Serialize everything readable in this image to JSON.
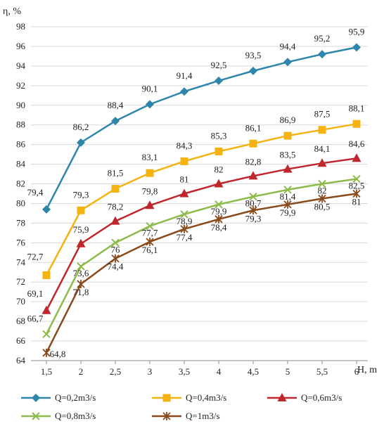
{
  "chart_data": {
    "type": "line",
    "title": "",
    "ylabel": "η, %",
    "xlabel": "H, m",
    "x": [
      1.5,
      2,
      2.5,
      3,
      3.5,
      4,
      4.5,
      5,
      5.5,
      6
    ],
    "x_tick_labels": [
      "1,5",
      "2",
      "2,5",
      "3",
      "3,5",
      "4",
      "4,5",
      "5",
      "5,5",
      "6"
    ],
    "ylim": [
      64,
      98
    ],
    "y_ticks": [
      64,
      66,
      68,
      70,
      72,
      74,
      76,
      78,
      80,
      82,
      84,
      86,
      88,
      90,
      92,
      94,
      96,
      98
    ],
    "grid": "horizontal",
    "legend_position": "bottom",
    "series": [
      {
        "name": "Q=0,2m3/s",
        "color": "#2E86AB",
        "marker": "diamond",
        "values": [
          79.4,
          86.2,
          88.4,
          90.1,
          91.4,
          92.5,
          93.5,
          94.4,
          95.2,
          95.9
        ],
        "labels": [
          "79,4",
          "86,2",
          "88,4",
          "90,1",
          "91,4",
          "92,5",
          "93,5",
          "94,4",
          "95,2",
          "95,9"
        ]
      },
      {
        "name": "Q=0,4m3/s",
        "color": "#F5B311",
        "marker": "square",
        "values": [
          72.7,
          79.3,
          81.5,
          83.1,
          84.3,
          85.3,
          86.1,
          86.9,
          87.5,
          88.1
        ],
        "labels": [
          "72,7",
          "79,3",
          "81,5",
          "83,1",
          "84,3",
          "85,3",
          "86,1",
          "86,9",
          "87,5",
          "88,1"
        ]
      },
      {
        "name": "Q=0,6m3/s",
        "color": "#C0272D",
        "marker": "triangle",
        "values": [
          69.1,
          75.9,
          78.2,
          79.8,
          81,
          82,
          82.8,
          83.5,
          84.1,
          84.6
        ],
        "labels": [
          "69,1",
          "75,9",
          "78,2",
          "79,8",
          "81",
          "82",
          "82,8",
          "83,5",
          "84,1",
          "84,6"
        ]
      },
      {
        "name": "Q=0,8m3/s",
        "color": "#8DBB4A",
        "marker": "x",
        "values": [
          66.7,
          73.6,
          76,
          77.7,
          78.9,
          79.9,
          80.7,
          81.4,
          82,
          82.5
        ],
        "labels": [
          "66,7",
          "73,6",
          "76",
          "77,7",
          "78,9",
          "79,9",
          "80,7",
          "81,4",
          "82",
          "82,5"
        ]
      },
      {
        "name": "Q=1m3/s",
        "color": "#8A4A1C",
        "marker": "star",
        "values": [
          64.8,
          71.8,
          74.4,
          76.1,
          77.4,
          78.4,
          79.3,
          79.9,
          80.5,
          81
        ],
        "labels": [
          "64,8",
          "71,8",
          "74,4",
          "76,1",
          "77,4",
          "78,4",
          "79,3",
          "79,9",
          "80,5",
          "81"
        ]
      }
    ]
  }
}
